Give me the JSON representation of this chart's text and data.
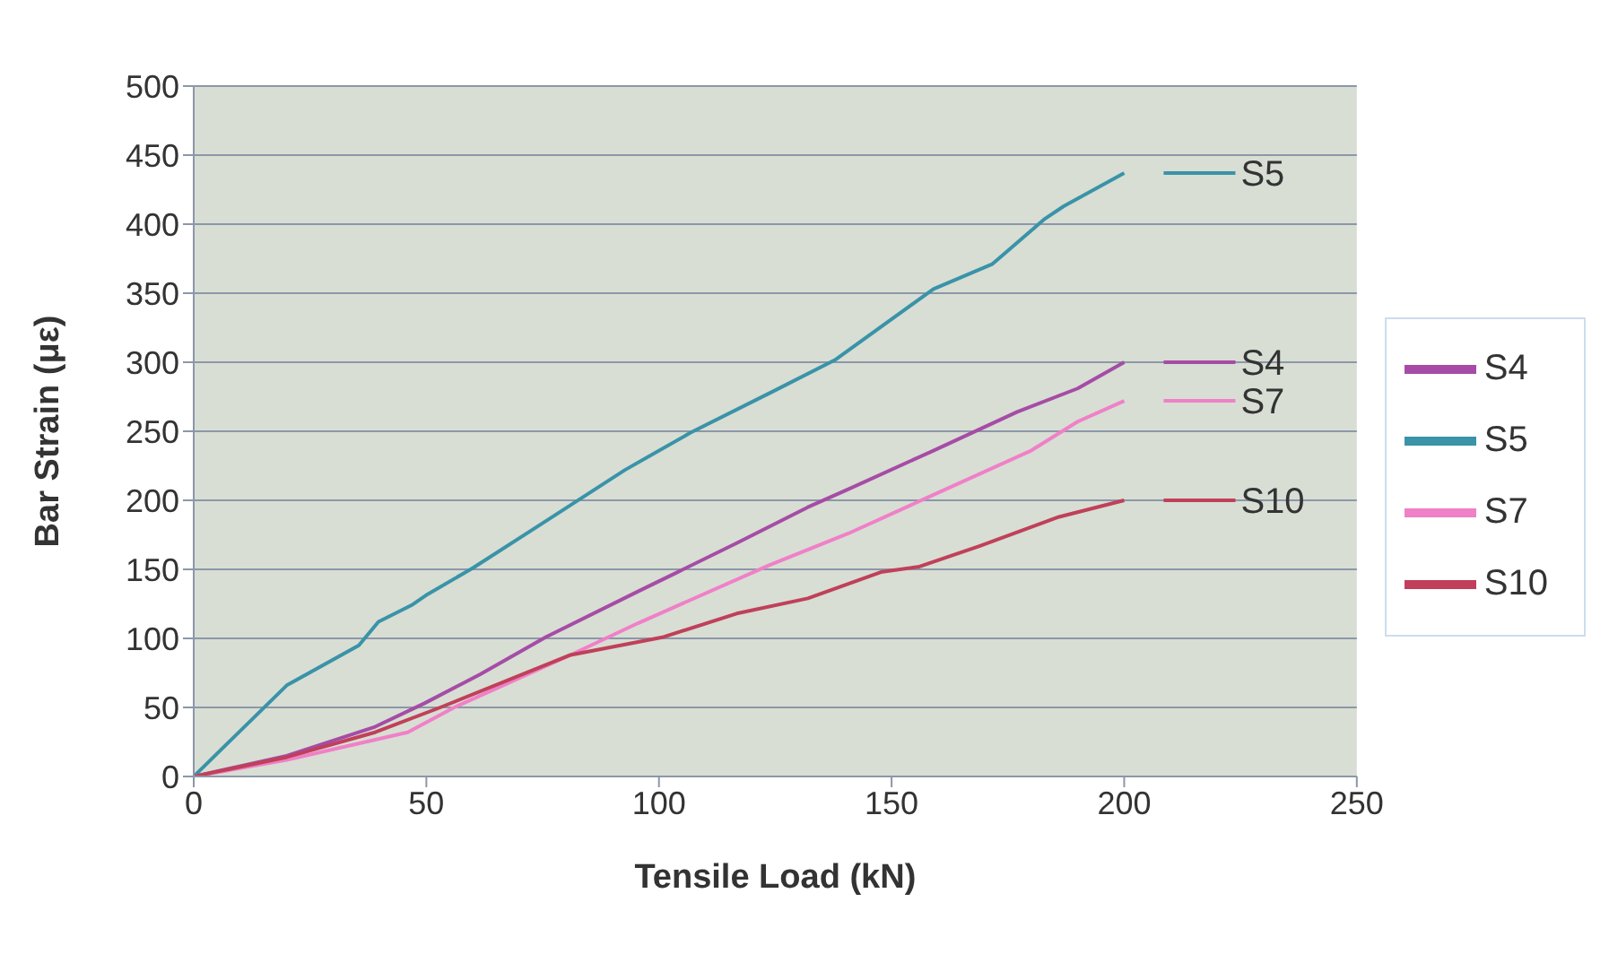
{
  "chart_data": {
    "type": "line",
    "xlabel": "Tensile Load (kN)",
    "ylabel": "Bar Strain (με)",
    "xlim": [
      0,
      250
    ],
    "xticks": [
      0,
      50,
      100,
      150,
      200,
      250
    ],
    "ylim": [
      0,
      500
    ],
    "yticks": [
      0,
      50,
      100,
      150,
      200,
      250,
      300,
      350,
      400,
      450,
      500
    ],
    "grid": "y",
    "legend": "right",
    "marker": "none",
    "line_style": "solid",
    "series": [
      {
        "name": "S4",
        "color": "#a64ca6",
        "x": [
          0,
          20,
          39,
          49.6,
          61.6,
          75.7,
          95.5,
          104,
          116.7,
          132,
          140.7,
          159,
          177,
          190,
          200
        ],
        "values": [
          0,
          15,
          36,
          53,
          74,
          101,
          134,
          148,
          169,
          195,
          208,
          236,
          264,
          281,
          300
        ]
      },
      {
        "name": "S5",
        "color": "#3a93a8",
        "x": [
          0,
          20,
          35.5,
          39.7,
          46.8,
          50.3,
          60,
          75.7,
          92.7,
          106.8,
          124,
          138,
          159,
          171.6,
          183,
          187,
          200
        ],
        "values": [
          0,
          66,
          95,
          112,
          124,
          132,
          151,
          185,
          222,
          249,
          278,
          302,
          353,
          371,
          404,
          413,
          437
        ]
      },
      {
        "name": "S7",
        "color": "#f080c8",
        "x": [
          0,
          20,
          46,
          56,
          81,
          95.5,
          123.7,
          140.7,
          159,
          180,
          190,
          200
        ],
        "values": [
          0,
          12,
          32,
          50,
          88,
          111,
          153,
          176,
          204,
          236,
          257,
          272
        ]
      },
      {
        "name": "S10",
        "color": "#c0405a",
        "x": [
          0,
          20,
          39,
          53,
          81,
          101,
          116.7,
          132,
          147.7,
          156,
          169,
          186,
          200
        ],
        "values": [
          0,
          14,
          32,
          50,
          88,
          101,
          118,
          129,
          148,
          152,
          167,
          188,
          200
        ]
      }
    ],
    "annotations": [
      "S4",
      "S5",
      "S7",
      "S10"
    ]
  }
}
